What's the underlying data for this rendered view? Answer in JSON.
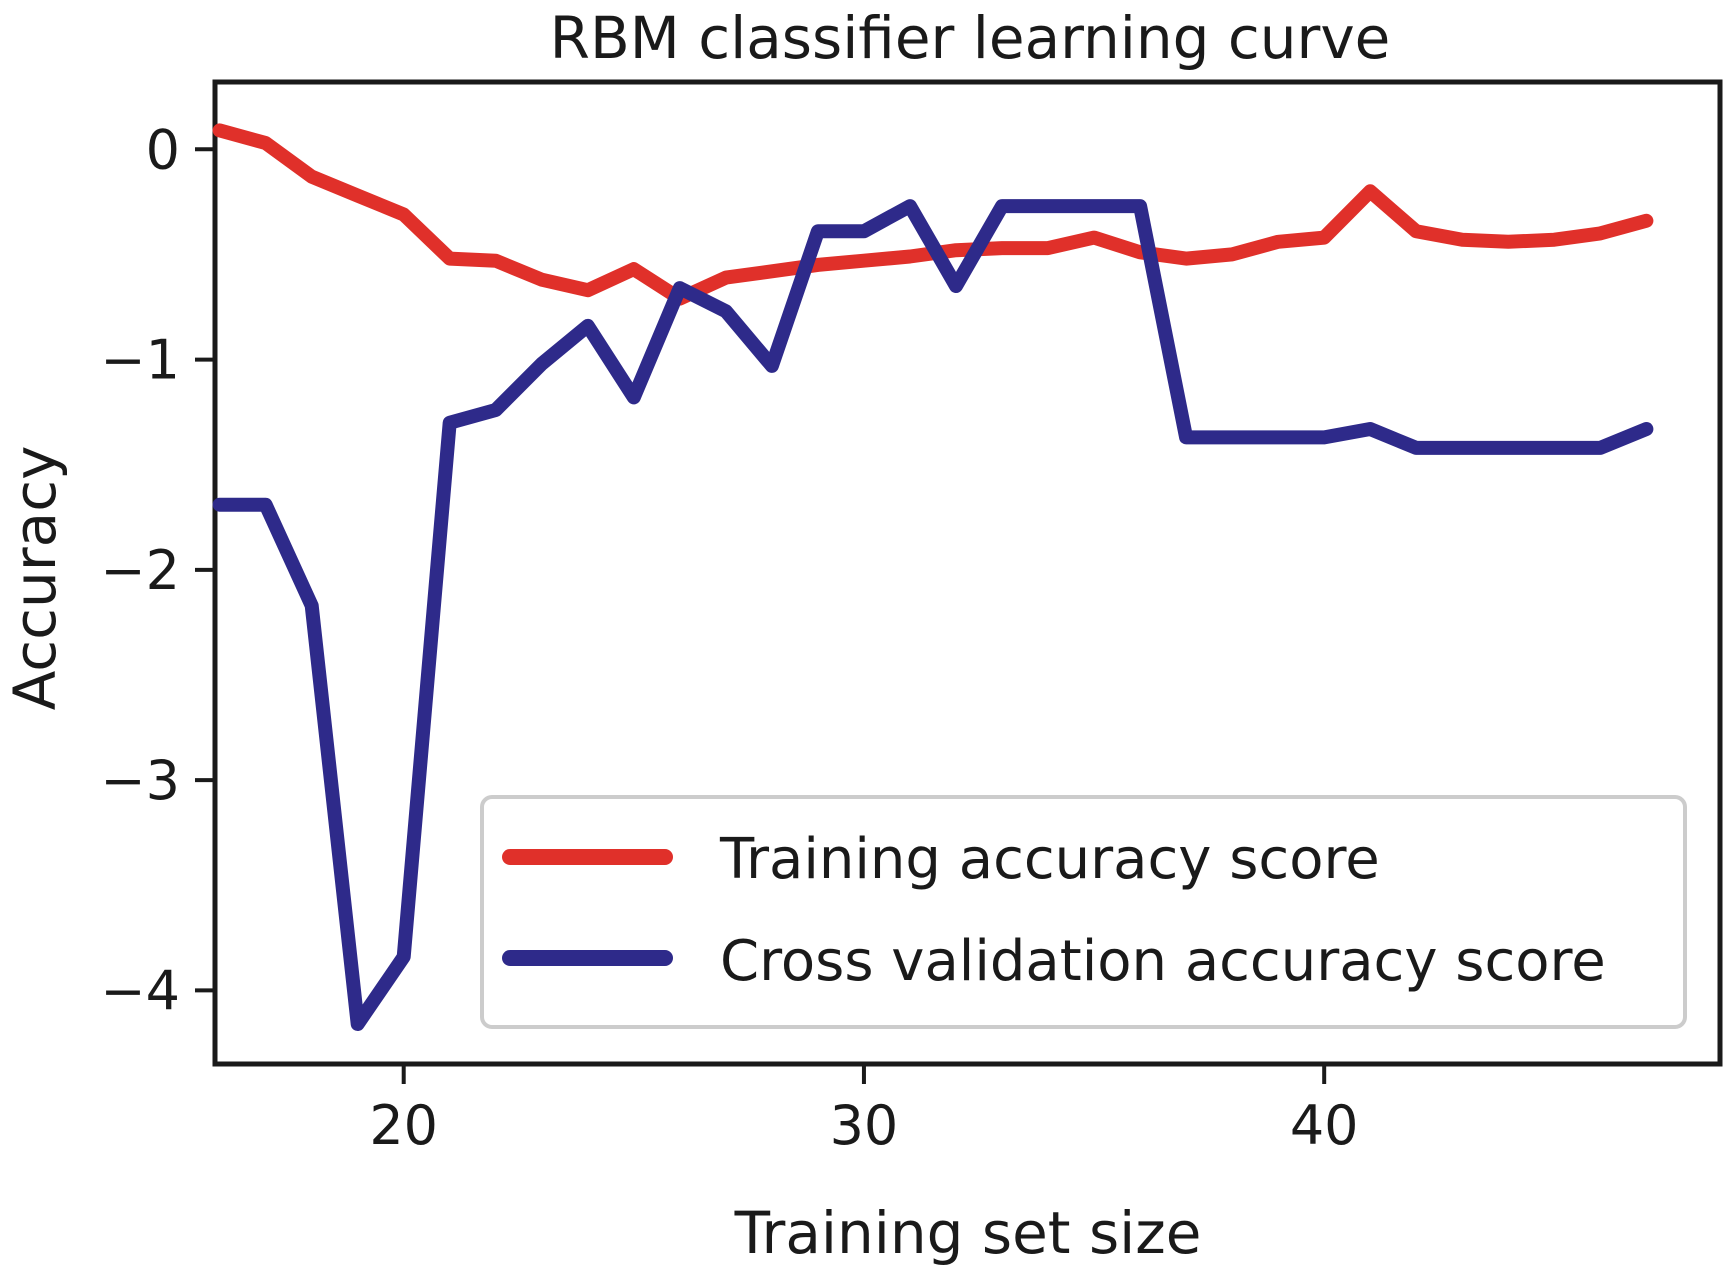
{
  "chart_data": {
    "type": "line",
    "title": "RBM classifier learning curve",
    "xlabel": "Training set size",
    "ylabel": "Accuracy",
    "xlim": [
      15.9,
      48.6
    ],
    "ylim": [
      -4.35,
      0.32
    ],
    "xticks": [
      20,
      30,
      40
    ],
    "yticks": [
      0,
      -1,
      -2,
      -3,
      -4
    ],
    "xtick_labels": [
      "20",
      "30",
      "40"
    ],
    "ytick_labels": [
      "0",
      "−1",
      "−2",
      "−3",
      "−4"
    ],
    "grid": false,
    "legend_position": "bottom-right",
    "x": [
      16,
      17,
      18,
      19,
      20,
      21,
      22,
      23,
      24,
      25,
      26,
      27,
      28,
      29,
      30,
      31,
      32,
      33,
      34,
      35,
      36,
      37,
      38,
      39,
      40,
      41,
      42,
      43,
      44,
      45,
      46,
      47
    ],
    "series": [
      {
        "name": "Training accuracy score",
        "color": "#e0302a",
        "values": [
          0.09,
          0.03,
          -0.13,
          -0.22,
          -0.31,
          -0.52,
          -0.53,
          -0.62,
          -0.67,
          -0.57,
          -0.71,
          -0.61,
          -0.58,
          -0.55,
          -0.53,
          -0.51,
          -0.48,
          -0.47,
          -0.47,
          -0.42,
          -0.49,
          -0.52,
          -0.5,
          -0.44,
          -0.42,
          -0.2,
          -0.39,
          -0.43,
          -0.44,
          -0.43,
          -0.4,
          -0.34
        ]
      },
      {
        "name": "Cross validation accuracy score",
        "color": "#2e2a8a",
        "values": [
          -1.69,
          -1.69,
          -2.17,
          -4.16,
          -3.84,
          -1.3,
          -1.24,
          -1.02,
          -0.84,
          -1.18,
          -0.66,
          -0.77,
          -1.03,
          -0.39,
          -0.39,
          -0.27,
          -0.65,
          -0.27,
          -0.27,
          -0.27,
          -0.27,
          -1.37,
          -1.37,
          -1.37,
          -1.37,
          -1.33,
          -1.42,
          -1.42,
          -1.42,
          -1.42,
          -1.42,
          -1.33
        ]
      }
    ]
  }
}
